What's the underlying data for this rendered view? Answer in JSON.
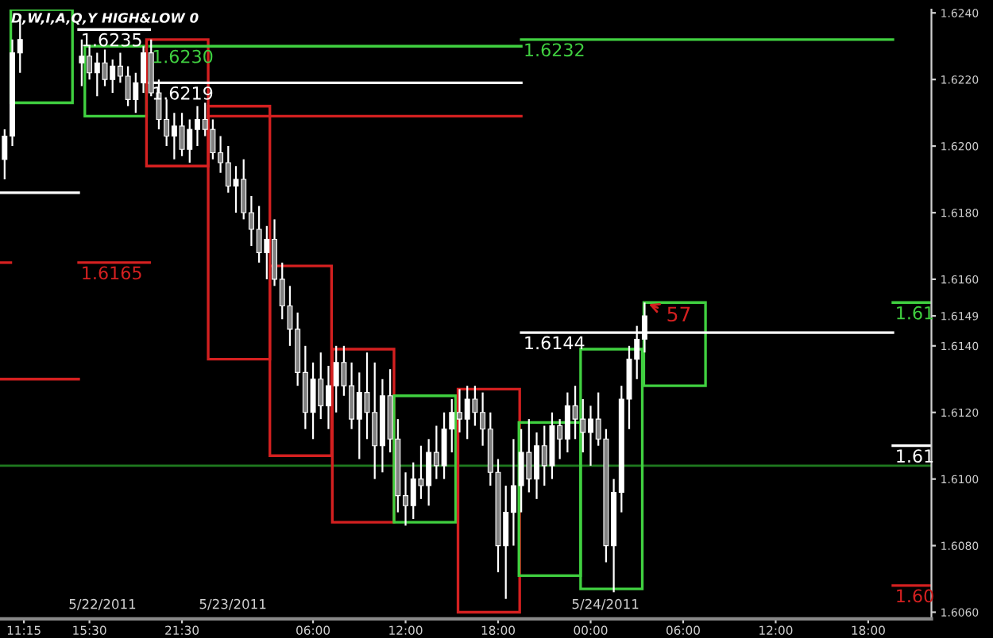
{
  "chart_data": {
    "type": "candlestick",
    "title": "D,W,I,A,Q,Y HIGH&LOW 0",
    "xlim": [
      "2011-05-22T09:42",
      "2011-05-24T22:06"
    ],
    "ylim": [
      1.6058,
      1.6241
    ],
    "xticks": [
      {
        "value": "2011-05-22T11:15",
        "label": "11:15"
      },
      {
        "value": "2011-05-22T15:30",
        "label": "15:30"
      },
      {
        "value": "2011-05-22T21:30",
        "label": "21:30"
      },
      {
        "value": "2011-05-23T06:00",
        "label": "06:00"
      },
      {
        "value": "2011-05-23T12:00",
        "label": "12:00"
      },
      {
        "value": "2011-05-23T18:00",
        "label": "18:00"
      },
      {
        "value": "2011-05-24T00:00",
        "label": "00:00"
      },
      {
        "value": "2011-05-24T06:00",
        "label": "06:00"
      },
      {
        "value": "2011-05-24T12:00",
        "label": "12:00"
      },
      {
        "value": "2011-05-24T18:00",
        "label": "18:00"
      }
    ],
    "yticks": [
      {
        "value": 1.606,
        "label": "1.6060"
      },
      {
        "value": 1.608,
        "label": "1.6080"
      },
      {
        "value": 1.61,
        "label": "1.6100"
      },
      {
        "value": 1.612,
        "label": "1.6120"
      },
      {
        "value": 1.614,
        "label": "1.6140"
      },
      1.6149,
      {
        "value": 1.616,
        "label": "1.6160"
      },
      {
        "value": 1.618,
        "label": "1.6180"
      },
      {
        "value": 1.62,
        "label": "1.6200"
      },
      {
        "value": 1.622,
        "label": "1.6220"
      },
      {
        "value": 1.624,
        "label": "1.6240"
      }
    ],
    "ref_lines": [
      {
        "axis": "y",
        "value": 1.6104,
        "color": "#1f7a1f"
      }
    ],
    "annotations": [
      "5/22/2011",
      "5/23/2011",
      "5/24/2011",
      {
        "text": "57",
        "x": "2011-05-24T03:30",
        "y": 1.6153
      }
    ],
    "series": [
      {
        "type": "bar",
        "x": [
          "2011-05-22T12:24",
          "2011-05-22T17:12",
          "2011-05-22T21:12",
          "2011-05-23T01:12",
          "2011-05-23T05:12",
          "2011-05-23T09:15",
          "2011-05-23T13:15",
          "2011-05-23T17:24",
          "2011-05-23T21:21",
          "2011-05-24T01:21",
          "2011-05-24T05:27"
        ],
        "base": [
          1.6213,
          1.6209,
          1.6194,
          1.6136,
          1.6107,
          1.6087,
          1.6087,
          1.606,
          1.6071,
          1.6067,
          1.6128
        ],
        "values": [
          0.0028,
          0.0021,
          0.0038,
          0.0076,
          0.0057,
          0.0052,
          0.0038,
          0.0067,
          0.0046,
          0.0072,
          0.0025
        ],
        "colors": [
          "#40d040",
          "#40d040",
          "#d42020",
          "#d42020",
          "#d42020",
          "#d42020",
          "#40d040",
          "#d42020",
          "#40d040",
          "#40d040",
          "#40d040"
        ]
      },
      {
        "type": "line",
        "color": "#d42020",
        "x": [
          "2011-05-22T09:42",
          "2011-05-22T10:24"
        ],
        "values": [
          1.6165,
          1.6165
        ]
      },
      {
        "type": "line",
        "color": "#ffffff",
        "name": "1.6235",
        "x": [
          "2011-05-22T14:48",
          "2011-05-22T19:24"
        ],
        "values": [
          1.6235,
          1.6235
        ]
      },
      {
        "type": "line",
        "color": "#40d040",
        "name": "1.6230",
        "x": [
          "2011-05-22T19:24",
          "2011-05-23T19:30"
        ],
        "values": [
          1.623,
          1.623
        ]
      },
      {
        "type": "line",
        "color": "#40d040",
        "name": "1.6232",
        "x": [
          "2011-05-23T19:30",
          "2011-05-24T19:36"
        ],
        "values": [
          1.6232,
          1.6232
        ]
      },
      {
        "type": "line",
        "color": "#ffffff",
        "name": "1.6219",
        "x": [
          "2011-05-22T19:24",
          "2011-05-23T19:30"
        ],
        "values": [
          1.6219,
          1.6219
        ]
      },
      {
        "type": "line",
        "color": "#d42020",
        "x": [
          "2011-05-22T23:12",
          "2011-05-23T19:30"
        ],
        "values": [
          1.6209,
          1.6209
        ]
      },
      {
        "type": "line",
        "color": "#ffffff",
        "x": [
          "2011-05-22T09:42",
          "2011-05-22T14:48"
        ],
        "values": [
          1.6186,
          1.6186
        ]
      },
      {
        "type": "line",
        "color": "#d42020",
        "x": [
          "2011-05-22T09:42",
          "2011-05-22T14:48"
        ],
        "values": [
          1.613,
          1.613
        ]
      },
      {
        "type": "line",
        "color": "#d42020",
        "name": "1.6165",
        "x": [
          "2011-05-22T14:48",
          "2011-05-22T19:24"
        ],
        "values": [
          1.6165,
          1.6165
        ]
      },
      {
        "type": "line",
        "color": "#ffffff",
        "name": "1.6144",
        "x": [
          "2011-05-23T19:30",
          "2011-05-24T19:36"
        ],
        "values": [
          1.6144,
          1.6144
        ]
      },
      {
        "type": "line",
        "color": "#ffffff",
        "name": "1.61",
        "x": [
          "2011-05-24T19:36",
          "2011-05-24T22:06"
        ],
        "values": [
          1.611,
          1.611
        ]
      },
      {
        "type": "line",
        "color": "#40d040",
        "name": "1.61",
        "x": [
          "2011-05-24T19:36",
          "2011-05-24T22:06"
        ],
        "values": [
          1.6153,
          1.6153
        ]
      },
      {
        "type": "line",
        "color": "#d42020",
        "name": "1.60",
        "x": [
          "2011-05-24T19:36",
          "2011-05-24T22:06"
        ],
        "values": [
          1.6068,
          1.6068
        ]
      },
      {
        "color": "#ffffff",
        "x": [
          "2011-05-22T10:00",
          "2011-05-22T10:30",
          "2011-05-22T11:00",
          "2011-05-22T15:00",
          "2011-05-22T15:30",
          "2011-05-22T16:00",
          "2011-05-22T16:30",
          "2011-05-22T17:00",
          "2011-05-22T17:30",
          "2011-05-22T18:00",
          "2011-05-22T18:30",
          "2011-05-22T19:00",
          "2011-05-22T19:30",
          "2011-05-22T20:00",
          "2011-05-22T20:30",
          "2011-05-22T21:00",
          "2011-05-22T21:30",
          "2011-05-22T22:00",
          "2011-05-22T22:30",
          "2011-05-22T23:00",
          "2011-05-22T23:30",
          "2011-05-23T00:00",
          "2011-05-23T00:30",
          "2011-05-23T01:00",
          "2011-05-23T01:30",
          "2011-05-23T02:00",
          "2011-05-23T02:30",
          "2011-05-23T03:00",
          "2011-05-23T03:30",
          "2011-05-23T04:00",
          "2011-05-23T04:30",
          "2011-05-23T05:00",
          "2011-05-23T05:30",
          "2011-05-23T06:00",
          "2011-05-23T06:30",
          "2011-05-23T07:00",
          "2011-05-23T07:30",
          "2011-05-23T08:00",
          "2011-05-23T08:30",
          "2011-05-23T09:00",
          "2011-05-23T09:30",
          "2011-05-23T10:00",
          "2011-05-23T10:30",
          "2011-05-23T11:00",
          "2011-05-23T11:30",
          "2011-05-23T12:00",
          "2011-05-23T12:30",
          "2011-05-23T13:00",
          "2011-05-23T13:30",
          "2011-05-23T14:00",
          "2011-05-23T14:30",
          "2011-05-23T15:00",
          "2011-05-23T15:30",
          "2011-05-23T16:00",
          "2011-05-23T16:30",
          "2011-05-23T17:00",
          "2011-05-23T17:30",
          "2011-05-23T18:00",
          "2011-05-23T18:30",
          "2011-05-23T19:00",
          "2011-05-23T19:30",
          "2011-05-23T20:00",
          "2011-05-23T20:30",
          "2011-05-23T21:00",
          "2011-05-23T21:30",
          "2011-05-23T22:00",
          "2011-05-23T22:30",
          "2011-05-23T23:00",
          "2011-05-23T23:30",
          "2011-05-24T00:00",
          "2011-05-24T00:30",
          "2011-05-24T01:00",
          "2011-05-24T01:30",
          "2011-05-24T02:00",
          "2011-05-24T02:30",
          "2011-05-24T03:00",
          "2011-05-24T03:30"
        ],
        "ohlc": [
          [
            1.6196,
            1.6205,
            1.619,
            1.6203
          ],
          [
            1.6203,
            1.6232,
            1.62,
            1.6228
          ],
          [
            1.6228,
            1.6238,
            1.6222,
            1.6232
          ],
          [
            1.6225,
            1.6232,
            1.6218,
            1.6227
          ],
          [
            1.6227,
            1.623,
            1.622,
            1.6222
          ],
          [
            1.6222,
            1.6228,
            1.6215,
            1.6225
          ],
          [
            1.6225,
            1.6229,
            1.6218,
            1.622
          ],
          [
            1.622,
            1.6226,
            1.6216,
            1.6224
          ],
          [
            1.6224,
            1.6228,
            1.6219,
            1.6221
          ],
          [
            1.6221,
            1.6224,
            1.6212,
            1.6214
          ],
          [
            1.6214,
            1.6222,
            1.621,
            1.6219
          ],
          [
            1.6219,
            1.623,
            1.6216,
            1.6228
          ],
          [
            1.6228,
            1.6232,
            1.6215,
            1.6216
          ],
          [
            1.6216,
            1.622,
            1.6205,
            1.6208
          ],
          [
            1.6208,
            1.6214,
            1.62,
            1.6203
          ],
          [
            1.6203,
            1.621,
            1.6196,
            1.6206
          ],
          [
            1.6206,
            1.621,
            1.6197,
            1.6199
          ],
          [
            1.6199,
            1.6208,
            1.6195,
            1.6205
          ],
          [
            1.6205,
            1.6212,
            1.62,
            1.6208
          ],
          [
            1.6208,
            1.6213,
            1.6203,
            1.6205
          ],
          [
            1.6205,
            1.6208,
            1.6196,
            1.6198
          ],
          [
            1.6198,
            1.6203,
            1.6192,
            1.6195
          ],
          [
            1.6195,
            1.62,
            1.6186,
            1.6188
          ],
          [
            1.6188,
            1.6194,
            1.618,
            1.619
          ],
          [
            1.619,
            1.6196,
            1.6178,
            1.618
          ],
          [
            1.618,
            1.6185,
            1.617,
            1.6175
          ],
          [
            1.6175,
            1.6182,
            1.6165,
            1.6168
          ],
          [
            1.6168,
            1.6176,
            1.616,
            1.6172
          ],
          [
            1.6172,
            1.6178,
            1.6158,
            1.616
          ],
          [
            1.616,
            1.6165,
            1.6148,
            1.6152
          ],
          [
            1.6152,
            1.6158,
            1.614,
            1.6145
          ],
          [
            1.6145,
            1.615,
            1.6128,
            1.6132
          ],
          [
            1.6132,
            1.614,
            1.6115,
            1.612
          ],
          [
            1.612,
            1.6135,
            1.6112,
            1.613
          ],
          [
            1.613,
            1.6138,
            1.6118,
            1.6122
          ],
          [
            1.6122,
            1.6134,
            1.6115,
            1.6128
          ],
          [
            1.6128,
            1.614,
            1.612,
            1.6135
          ],
          [
            1.6135,
            1.614,
            1.6125,
            1.6128
          ],
          [
            1.6128,
            1.6135,
            1.6115,
            1.6118
          ],
          [
            1.6118,
            1.6132,
            1.6106,
            1.6126
          ],
          [
            1.6126,
            1.6138,
            1.6112,
            1.612
          ],
          [
            1.612,
            1.6135,
            1.61,
            1.611
          ],
          [
            1.611,
            1.613,
            1.6102,
            1.6125
          ],
          [
            1.6125,
            1.6133,
            1.6108,
            1.6112
          ],
          [
            1.6112,
            1.6118,
            1.609,
            1.6095
          ],
          [
            1.6095,
            1.6102,
            1.6086,
            1.6092
          ],
          [
            1.6092,
            1.6105,
            1.6088,
            1.61
          ],
          [
            1.61,
            1.611,
            1.6094,
            1.6098
          ],
          [
            1.6098,
            1.6112,
            1.6092,
            1.6108
          ],
          [
            1.6108,
            1.6116,
            1.61,
            1.6104
          ],
          [
            1.6104,
            1.612,
            1.61,
            1.6115
          ],
          [
            1.6115,
            1.6124,
            1.6108,
            1.612
          ],
          [
            1.612,
            1.6127,
            1.6114,
            1.6118
          ],
          [
            1.6118,
            1.6128,
            1.6112,
            1.6124
          ],
          [
            1.6124,
            1.6128,
            1.6116,
            1.612
          ],
          [
            1.612,
            1.6126,
            1.611,
            1.6115
          ],
          [
            1.6115,
            1.612,
            1.6098,
            1.6102
          ],
          [
            1.6102,
            1.6106,
            1.6072,
            1.608
          ],
          [
            1.608,
            1.6098,
            1.6064,
            1.609
          ],
          [
            1.609,
            1.6112,
            1.608,
            1.6098
          ],
          [
            1.6098,
            1.6115,
            1.609,
            1.6108
          ],
          [
            1.6108,
            1.6118,
            1.6096,
            1.61
          ],
          [
            1.61,
            1.6114,
            1.6094,
            1.611
          ],
          [
            1.611,
            1.6116,
            1.6098,
            1.6104
          ],
          [
            1.6104,
            1.612,
            1.61,
            1.6116
          ],
          [
            1.6116,
            1.6118,
            1.6106,
            1.6112
          ],
          [
            1.6112,
            1.6126,
            1.6108,
            1.6122
          ],
          [
            1.6122,
            1.6128,
            1.6112,
            1.6118
          ],
          [
            1.6118,
            1.6124,
            1.6108,
            1.6114
          ],
          [
            1.6114,
            1.6122,
            1.6104,
            1.6118
          ],
          [
            1.6118,
            1.6126,
            1.611,
            1.6112
          ],
          [
            1.6112,
            1.6115,
            1.6075,
            1.608
          ],
          [
            1.608,
            1.61,
            1.6066,
            1.6096
          ],
          [
            1.6096,
            1.6128,
            1.609,
            1.6124
          ],
          [
            1.6124,
            1.614,
            1.6115,
            1.6136
          ],
          [
            1.6136,
            1.6146,
            1.613,
            1.6142
          ],
          [
            1.6142,
            1.6153,
            1.6138,
            1.6149
          ]
        ]
      }
    ]
  }
}
